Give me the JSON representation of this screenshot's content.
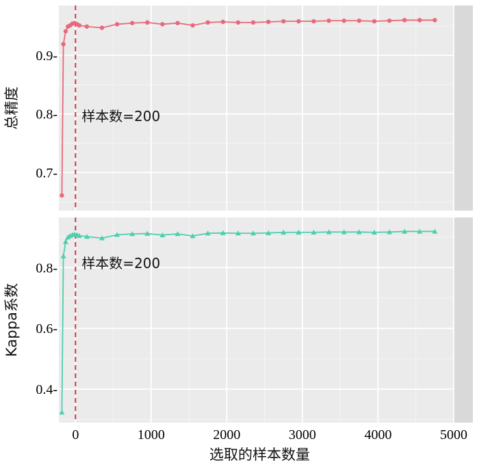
{
  "chart_data": [
    {
      "type": "line",
      "ylabel": "总精度",
      "xlim": [
        -220,
        5000
      ],
      "ylim": [
        0.635,
        0.985
      ],
      "yticks": [
        0.7,
        0.8,
        0.9
      ],
      "ytick_labels": [
        "0.7-",
        "0.8-",
        "0.9-"
      ],
      "grid": true,
      "color": "#e8697a",
      "marker": "circle",
      "annotation": "样本数=200",
      "vline_x": 0,
      "vline_color": "#d1334a",
      "series": [
        {
          "x": [
            -180,
            -160,
            -130,
            -100,
            -70,
            -40,
            -10,
            20,
            50,
            150,
            350,
            550,
            750,
            950,
            1150,
            1350,
            1550,
            1750,
            1950,
            2150,
            2350,
            2550,
            2750,
            2950,
            3150,
            3350,
            3550,
            3750,
            3950,
            4150,
            4350,
            4550,
            4750
          ],
          "y": [
            0.661,
            0.919,
            0.941,
            0.949,
            0.951,
            0.954,
            0.955,
            0.953,
            0.951,
            0.949,
            0.947,
            0.953,
            0.955,
            0.956,
            0.953,
            0.955,
            0.951,
            0.956,
            0.957,
            0.956,
            0.956,
            0.957,
            0.958,
            0.958,
            0.958,
            0.959,
            0.959,
            0.959,
            0.958,
            0.959,
            0.96,
            0.96,
            0.96
          ]
        }
      ]
    },
    {
      "type": "line",
      "ylabel": "Kappa系数",
      "xlabel": "选取的样本数量",
      "xlim": [
        -220,
        5000
      ],
      "ylim": [
        0.29,
        0.965
      ],
      "yticks": [
        0.4,
        0.6,
        0.8
      ],
      "ytick_labels": [
        "0.4-",
        "0.6-",
        "0.8-"
      ],
      "xticks": [
        0,
        1000,
        2000,
        3000,
        4000,
        5000
      ],
      "xtick_labels": [
        "0",
        "1000",
        "2000",
        "3000",
        "4000",
        "5000"
      ],
      "grid": true,
      "color": "#4dcfae",
      "marker": "triangle",
      "annotation": "样本数=200",
      "vline_x": 0,
      "vline_color": "#d1334a",
      "series": [
        {
          "x": [
            -180,
            -160,
            -130,
            -100,
            -70,
            -40,
            -10,
            20,
            50,
            150,
            350,
            550,
            750,
            950,
            1150,
            1350,
            1550,
            1750,
            1950,
            2150,
            2350,
            2550,
            2750,
            2950,
            3150,
            3350,
            3550,
            3750,
            3950,
            4150,
            4350,
            4550,
            4750
          ],
          "y": [
            0.324,
            0.838,
            0.885,
            0.9,
            0.905,
            0.908,
            0.91,
            0.908,
            0.905,
            0.902,
            0.897,
            0.908,
            0.911,
            0.912,
            0.907,
            0.911,
            0.904,
            0.913,
            0.914,
            0.913,
            0.913,
            0.914,
            0.916,
            0.916,
            0.916,
            0.917,
            0.917,
            0.917,
            0.916,
            0.917,
            0.919,
            0.919,
            0.919
          ]
        }
      ]
    }
  ]
}
